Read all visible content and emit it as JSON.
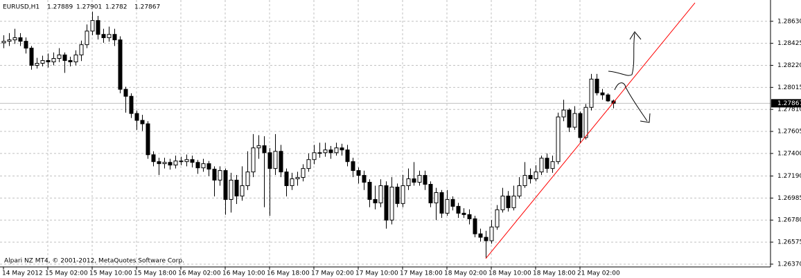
{
  "chart_data": {
    "type": "candlestick",
    "title": "EURUSD,H1",
    "footer": "Alpari NZ MT4, © 2001-2012, MetaQuotes Software Corp.",
    "grid": true,
    "up_color": "#ffffff",
    "down_color": "#000000",
    "outline_color": "#000000",
    "categories": [
      "14 May 2012",
      null,
      null,
      null,
      null,
      null,
      null,
      null,
      "15 May 02:00",
      null,
      null,
      null,
      null,
      null,
      null,
      null,
      "15 May 10:00",
      null,
      null,
      null,
      null,
      null,
      null,
      null,
      "15 May 18:00",
      null,
      null,
      null,
      null,
      null,
      null,
      null,
      "16 May 02:00",
      null,
      null,
      null,
      null,
      null,
      null,
      null,
      "16 May 10:00",
      null,
      null,
      null,
      null,
      null,
      null,
      null,
      "16 May 18:00",
      null,
      null,
      null,
      null,
      null,
      null,
      null,
      "17 May 02:00",
      null,
      null,
      null,
      null,
      null,
      null,
      null,
      "17 May 10:00",
      null,
      null,
      null,
      null,
      null,
      null,
      null,
      "17 May 18:00",
      null,
      null,
      null,
      null,
      null,
      null,
      null,
      "18 May 02:00",
      null,
      null,
      null,
      null,
      null,
      null,
      null,
      "18 May 10:00",
      null,
      null,
      null,
      null,
      null,
      null,
      null,
      "18 May 18:00",
      null,
      null,
      null,
      null,
      null,
      null,
      null,
      "21 May 02:00",
      null,
      null,
      null,
      null,
      null,
      null
    ],
    "open": [
      1.2843,
      1.28444,
      1.28457,
      1.28477,
      1.28444,
      1.2838,
      1.2822,
      1.28239,
      1.28265,
      1.28252,
      1.28284,
      1.28317,
      1.28265,
      1.28252,
      1.28317,
      1.28412,
      1.28539,
      1.28637,
      1.28508,
      1.28477,
      1.28508,
      1.28457,
      1.27997,
      1.27932,
      1.27772,
      1.27708,
      1.27676,
      1.27388,
      1.27324,
      1.27305,
      1.27317,
      1.27292,
      1.2733,
      1.27324,
      1.27343,
      1.27317,
      1.27266,
      1.27305,
      1.27254,
      1.27152,
      1.27241,
      1.26972,
      1.27152,
      1.27004,
      1.271,
      1.27228,
      1.27452,
      1.27472,
      1.27407,
      1.2726,
      1.2742,
      1.27228,
      1.271,
      1.27164,
      1.27177,
      1.2726,
      1.27343,
      1.27407,
      1.27407,
      1.27433,
      1.27407,
      1.27452,
      1.27433,
      1.27324,
      1.27241,
      1.27196,
      1.27132,
      1.26972,
      1.2694,
      1.271,
      1.2678,
      1.27087,
      1.26934,
      1.271,
      1.27164,
      1.27132,
      1.27196,
      1.27113,
      1.2694,
      1.27036,
      1.26844,
      1.26972,
      1.26908,
      1.26844,
      1.26831,
      1.26792,
      1.26652,
      1.2662,
      1.26588,
      1.26716,
      1.26876,
      1.27004,
      1.26895,
      1.27004,
      1.271,
      1.27196,
      1.27164,
      1.27228,
      1.27356,
      1.2726,
      1.27324,
      1.2774,
      1.27804,
      1.27644,
      1.27772,
      1.27548,
      1.27829,
      1.28092,
      1.27964,
      1.27945,
      1.27889
    ],
    "high": [
      1.285,
      1.2852,
      1.2856,
      1.2852,
      1.2848,
      1.284,
      1.2829,
      1.2831,
      1.2833,
      1.2834,
      1.2838,
      1.2834,
      1.283,
      1.2836,
      1.2845,
      1.286,
      1.2872,
      1.2868,
      1.2856,
      1.2858,
      1.2856,
      1.2849,
      1.2802,
      1.2796,
      1.278,
      1.2776,
      1.277,
      1.2742,
      1.2736,
      1.2736,
      1.2735,
      1.2738,
      1.2737,
      1.2739,
      1.2738,
      1.2734,
      1.2735,
      1.2733,
      1.2728,
      1.2728,
      1.2726,
      1.2722,
      1.272,
      1.2728,
      1.2742,
      1.2758,
      1.2757,
      1.2756,
      1.2745,
      1.2758,
      1.2748,
      1.2726,
      1.2722,
      1.2723,
      1.273,
      1.274,
      1.2748,
      1.275,
      1.275,
      1.2747,
      1.275,
      1.2749,
      1.2748,
      1.2736,
      1.2727,
      1.2724,
      1.2716,
      1.271,
      1.2716,
      1.2714,
      1.2718,
      1.2712,
      1.272,
      1.2726,
      1.2732,
      1.2724,
      1.2724,
      1.2714,
      1.2708,
      1.2706,
      1.2706,
      1.27,
      1.2694,
      1.2689,
      1.2688,
      1.2682,
      1.267,
      1.2668,
      1.2678,
      1.2692,
      1.2708,
      1.2705,
      1.271,
      1.2718,
      1.2732,
      1.2726,
      1.2729,
      1.2738,
      1.274,
      1.2738,
      1.2778,
      1.279,
      1.2782,
      1.2784,
      1.2779,
      1.2786,
      1.2814,
      1.2814,
      1.28,
      1.2796,
      1.27901
    ],
    "low": [
      1.2838,
      1.284,
      1.2842,
      1.284,
      1.2833,
      1.2818,
      1.2819,
      1.2821,
      1.282,
      1.2822,
      1.2825,
      1.2815,
      1.2821,
      1.2822,
      1.2826,
      1.2838,
      1.285,
      1.2846,
      1.2843,
      1.2844,
      1.284,
      1.2796,
      1.2778,
      1.2773,
      1.2762,
      1.2761,
      1.2735,
      1.2728,
      1.272,
      1.2726,
      1.2725,
      1.2726,
      1.2729,
      1.2728,
      1.2727,
      1.2721,
      1.2723,
      1.2719,
      1.27,
      1.271,
      1.2683,
      1.2685,
      1.2693,
      1.2696,
      1.2706,
      1.2718,
      1.2735,
      1.269,
      1.2682,
      1.272,
      1.2718,
      1.27,
      1.2706,
      1.271,
      1.2714,
      1.2723,
      1.273,
      1.2736,
      1.2737,
      1.2735,
      1.2738,
      1.2738,
      1.2728,
      1.2718,
      1.2712,
      1.2706,
      1.269,
      1.2688,
      1.269,
      1.267,
      1.2674,
      1.269,
      1.269,
      1.2706,
      1.271,
      1.271,
      1.2706,
      1.269,
      1.2678,
      1.268,
      1.2682,
      1.2687,
      1.268,
      1.268,
      1.2674,
      1.2662,
      1.2658,
      1.2643,
      1.2656,
      1.2669,
      1.2685,
      1.2686,
      1.2687,
      1.2698,
      1.2708,
      1.2712,
      1.2714,
      1.272,
      1.2722,
      1.2722,
      1.273,
      1.277,
      1.276,
      1.2762,
      1.275,
      1.2753,
      1.278,
      1.2794,
      1.279,
      1.2788,
      1.2782
    ],
    "close": [
      1.28444,
      1.28457,
      1.28477,
      1.28444,
      1.2838,
      1.2822,
      1.28239,
      1.28265,
      1.28252,
      1.28284,
      1.28317,
      1.28265,
      1.28252,
      1.28317,
      1.28412,
      1.28539,
      1.28637,
      1.28508,
      1.28477,
      1.28508,
      1.28457,
      1.27997,
      1.27932,
      1.27772,
      1.27708,
      1.27676,
      1.27388,
      1.27324,
      1.27305,
      1.27317,
      1.27292,
      1.2733,
      1.27324,
      1.27343,
      1.27317,
      1.27266,
      1.27305,
      1.27254,
      1.27152,
      1.27241,
      1.26972,
      1.27152,
      1.27004,
      1.271,
      1.27228,
      1.27452,
      1.27472,
      1.27407,
      1.2726,
      1.2742,
      1.27228,
      1.271,
      1.27164,
      1.27177,
      1.2726,
      1.27343,
      1.27407,
      1.27407,
      1.27433,
      1.27407,
      1.27452,
      1.27433,
      1.27324,
      1.27241,
      1.27196,
      1.27132,
      1.26972,
      1.2694,
      1.271,
      1.2678,
      1.27087,
      1.26934,
      1.271,
      1.27164,
      1.27132,
      1.27196,
      1.27113,
      1.2694,
      1.27036,
      1.26844,
      1.26972,
      1.26908,
      1.26844,
      1.26831,
      1.26792,
      1.26652,
      1.2662,
      1.26588,
      1.26716,
      1.26876,
      1.27004,
      1.26895,
      1.27004,
      1.271,
      1.27196,
      1.27164,
      1.27228,
      1.27356,
      1.2726,
      1.27324,
      1.2774,
      1.27804,
      1.27644,
      1.27772,
      1.27548,
      1.27829,
      1.28092,
      1.27964,
      1.27945,
      1.27889,
      1.27867
    ],
    "ylim": [
      1.26344,
      1.28828
    ],
    "yticks": [
      {
        "value": 1.2863,
        "label": "1.28630"
      },
      1.28425,
      {
        "value": 1.2822,
        "label": "1.28220"
      },
      1.28015,
      {
        "value": 1.2781,
        "label": "1.27810"
      },
      1.27605,
      {
        "value": 1.274,
        "label": "1.27400"
      },
      {
        "value": 1.2719,
        "label": "1.27190"
      },
      1.26985,
      {
        "value": 1.2678,
        "label": "1.26780"
      },
      1.26575,
      {
        "value": 1.2637,
        "label": "1.26370"
      }
    ],
    "trendline": {
      "x": [
        87,
        124.75
      ],
      "y": [
        1.26422,
        1.28802
      ],
      "color": "#ff0000"
    }
  }
}
